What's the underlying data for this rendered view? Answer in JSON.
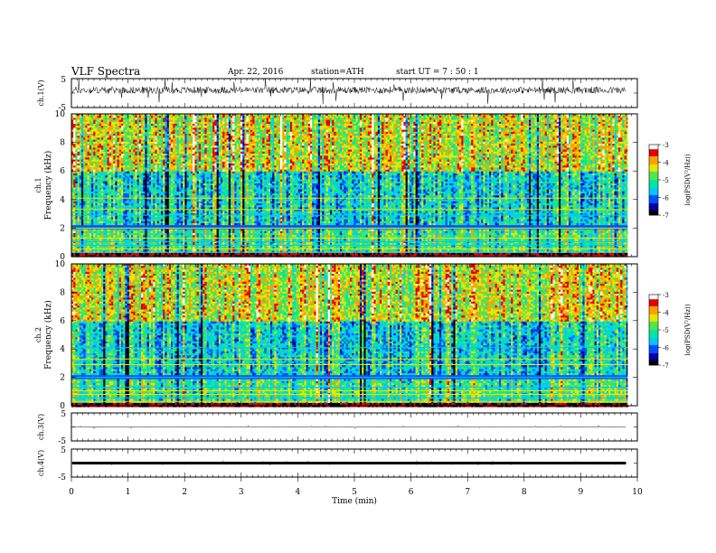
{
  "header": {
    "title": "VLF  Spectra",
    "date": "Apr. 22, 2016",
    "station": "station=ATH",
    "start": "start  UT  =   7  : 50 : 1"
  },
  "chart_data": [
    {
      "type": "line",
      "ylabel": "ch.1(V)",
      "ylim": [
        -5,
        5
      ],
      "yticks": [
        "5",
        "-5"
      ],
      "baseline_V": 1.0,
      "noise_amp_V": 1.2,
      "x_end_min": 9.8
    },
    {
      "type": "heatmap",
      "ylabel_channel": "ch.1",
      "ylabel": "Frequency  (kHz)",
      "ylim": [
        0,
        10
      ],
      "yticks": [
        "0",
        "2",
        "4",
        "6",
        "8",
        "10"
      ],
      "zlabel": "log(PSD(V²/Hz))",
      "zlim": [
        -7,
        -3
      ],
      "zticks": [
        "-3",
        "-4",
        "-5",
        "-6",
        "-7"
      ],
      "colorscale": [
        "#000000",
        "#0000aa",
        "#0050ff",
        "#00c8ff",
        "#00e6a0",
        "#50e650",
        "#e6e600",
        "#ffa000",
        "#e60000",
        "#ffffff"
      ]
    },
    {
      "type": "heatmap",
      "ylabel_channel": "ch.2",
      "ylabel": "Frequency  (kHz)",
      "ylim": [
        0,
        10
      ],
      "yticks": [
        "0",
        "2",
        "4",
        "6",
        "8",
        "10"
      ],
      "zlabel": "log(PSD(V²/Hz))",
      "zlim": [
        -7,
        -3
      ],
      "zticks": [
        "-3",
        "-4",
        "-5",
        "-6",
        "-7"
      ],
      "colorscale": [
        "#000000",
        "#0000aa",
        "#0050ff",
        "#00c8ff",
        "#00e6a0",
        "#50e650",
        "#e6e600",
        "#ffa000",
        "#e60000",
        "#ffffff"
      ]
    },
    {
      "type": "line",
      "ylabel": "ch.3(V)",
      "ylim": [
        -5,
        5
      ],
      "yticks": [
        "5",
        "-5"
      ],
      "baseline_V": 0.0,
      "noise_amp_V": 0.05,
      "x_end_min": 9.8
    },
    {
      "type": "line",
      "ylabel": "ch.4(V)",
      "ylim": [
        -5,
        5
      ],
      "yticks": [
        "5",
        "-5"
      ],
      "baseline_V": 0.0,
      "noise_amp_V": 0.3,
      "x_end_min": 9.8
    }
  ],
  "x_axis": {
    "label": "Time  (min)",
    "xlim": [
      0,
      10
    ],
    "ticks": [
      "0",
      "1",
      "2",
      "3",
      "4",
      "5",
      "6",
      "7",
      "8",
      "9",
      "10"
    ]
  }
}
